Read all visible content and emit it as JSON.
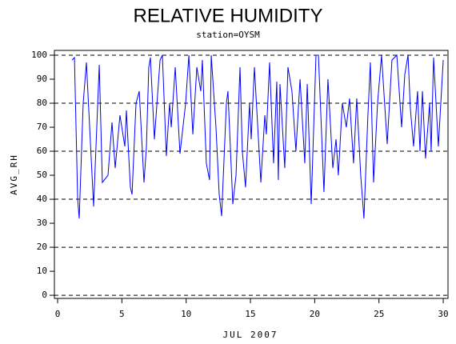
{
  "chart_data": {
    "type": "line",
    "title": "RELATIVE HUMIDITY",
    "subtitle": "station=OYSM",
    "x_label": "JUL 2007",
    "y_label": "AVG_RH",
    "xlim": [
      -0.25,
      30.37
    ],
    "ylim": [
      -1.3,
      102
    ],
    "xticks": [
      0,
      5,
      10,
      15,
      20,
      25,
      30
    ],
    "yticks": [
      0,
      10,
      20,
      30,
      40,
      50,
      60,
      70,
      80,
      90,
      100
    ],
    "reference_lines": [
      0,
      20,
      40,
      60,
      80,
      100
    ],
    "series": [
      {
        "name": "AVG_RH",
        "color": "#0000ff",
        "x": [
          1.12,
          1.31,
          1.56,
          1.68,
          1.99,
          2.24,
          2.8,
          3.24,
          3.48,
          3.92,
          4.23,
          4.48,
          4.85,
          5.23,
          5.35,
          5.66,
          5.79,
          6.1,
          6.35,
          6.72,
          6.91,
          7.09,
          7.22,
          7.53,
          7.97,
          8.15,
          8.46,
          8.71,
          8.84,
          9.15,
          9.52,
          9.96,
          10.21,
          10.52,
          10.83,
          11.14,
          11.26,
          11.57,
          11.82,
          11.95,
          12.32,
          12.57,
          12.76,
          13.13,
          13.25,
          13.63,
          13.88,
          14.19,
          14.37,
          14.62,
          14.93,
          15.06,
          15.31,
          15.81,
          16.12,
          16.24,
          16.49,
          16.8,
          17.05,
          17.17,
          17.3,
          17.67,
          17.92,
          18.23,
          18.54,
          18.86,
          19.23,
          19.42,
          19.73,
          20.1,
          20.29,
          20.72,
          21.03,
          21.41,
          21.66,
          21.84,
          22.15,
          22.46,
          22.71,
          23.02,
          23.27,
          23.58,
          23.83,
          24.14,
          24.33,
          24.58,
          24.89,
          25.2,
          25.64,
          26.01,
          26.39,
          26.76,
          27.01,
          27.26,
          27.44,
          27.69,
          28.0,
          28.19,
          28.38,
          28.62,
          28.94,
          29.06,
          29.25,
          29.62,
          30.0
        ],
        "values": [
          98,
          99,
          40,
          32,
          80,
          97,
          37,
          96,
          47,
          50,
          72,
          53,
          75,
          62,
          77,
          45,
          42,
          80,
          85,
          47,
          62,
          95,
          99,
          65,
          98,
          100,
          58,
          80,
          70,
          95,
          59,
          80,
          100,
          67,
          95,
          85,
          98,
          55,
          48,
          100,
          70,
          42,
          33,
          80,
          85,
          38,
          50,
          95,
          60,
          45,
          80,
          65,
          95,
          47,
          75,
          67,
          97,
          55,
          89,
          48,
          88,
          53,
          95,
          85,
          60,
          90,
          55,
          88,
          38,
          100,
          100,
          43,
          90,
          53,
          65,
          50,
          80,
          70,
          82,
          55,
          82,
          50,
          32,
          75,
          97,
          47,
          80,
          100,
          63,
          98,
          100,
          70,
          92,
          100,
          78,
          62,
          85,
          60,
          85,
          57,
          80,
          60,
          99,
          62,
          98
        ]
      }
    ]
  }
}
